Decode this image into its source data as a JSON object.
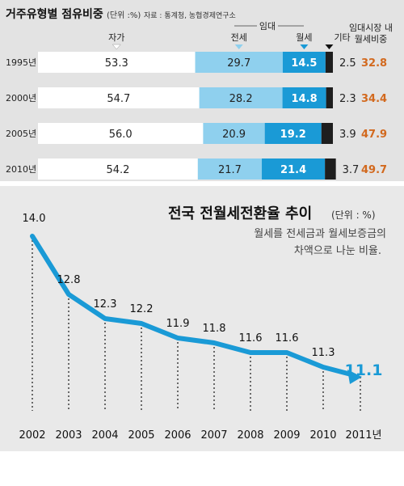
{
  "chart_data": [
    {
      "type": "bar",
      "stacked": true,
      "title": "거주유형별 점유비중",
      "unit": "(단위 :%)",
      "source": "자료 : 통계청, 농협경제연구소",
      "group_label": "임대",
      "rent_total_label": [
        "임대시장 내",
        "월세비중"
      ],
      "categories": [
        "1995년",
        "2000년",
        "2005년",
        "2010년"
      ],
      "series": [
        {
          "name": "자가",
          "values": [
            "53.3",
            "54.7",
            "56.0",
            "54.2"
          ],
          "color": "#ffffff"
        },
        {
          "name": "전세",
          "values": [
            "29.7",
            "28.2",
            "20.9",
            "21.7"
          ],
          "color": "#8fd0ee"
        },
        {
          "name": "월세",
          "values": [
            "14.5",
            "14.8",
            "19.2",
            "21.4"
          ],
          "color": "#1a9ad6"
        },
        {
          "name": "기타",
          "values": [
            "2.5",
            "2.3",
            "3.9",
            "3.7"
          ],
          "color": "#1e1e1e"
        }
      ],
      "rent_share": [
        "32.8",
        "34.4",
        "47.9",
        "49.7"
      ],
      "rent_share_color": "#d2691e"
    },
    {
      "type": "line",
      "title": "전국 전월세전환율 추이",
      "unit": "(단위 : %)",
      "note": [
        "월세를 전세금과 월세보증금의",
        "차액으로 나눈 비율."
      ],
      "x": [
        "2002",
        "2003",
        "2004",
        "2005",
        "2006",
        "2007",
        "2008",
        "2009",
        "2010",
        "2011년"
      ],
      "labels": [
        "14.0",
        "12.8",
        "12.3",
        "12.2",
        "11.9",
        "11.8",
        "11.6",
        "11.6",
        "11.3",
        "11.1"
      ],
      "values": [
        14.0,
        12.8,
        12.3,
        12.2,
        11.9,
        11.8,
        11.6,
        11.6,
        11.3,
        11.1
      ],
      "line_color": "#1a9ad6",
      "highlight_color": "#1a9ad6"
    }
  ]
}
